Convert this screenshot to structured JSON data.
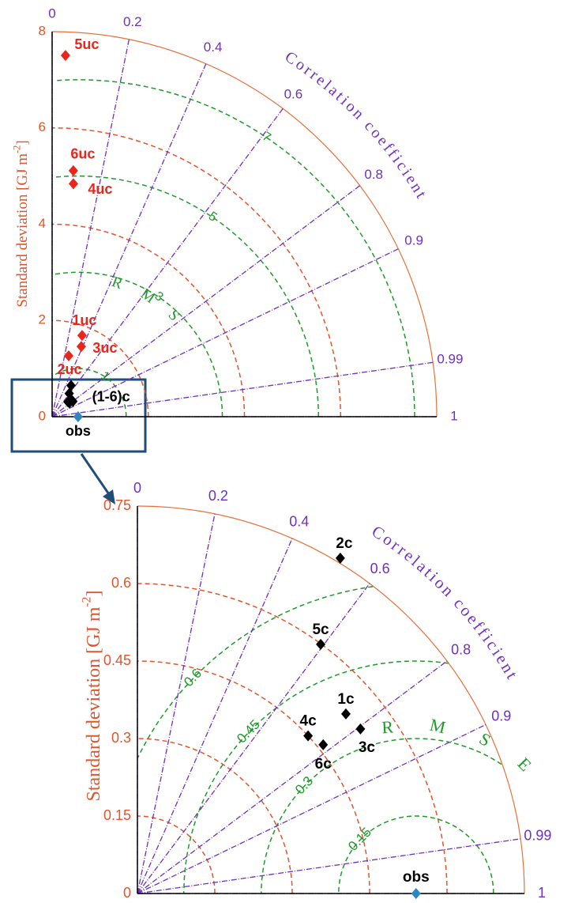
{
  "chart_data": [
    {
      "type": "taylor",
      "ylabel": [
        "Standard deviation [GJ m",
        "-2",
        "]"
      ],
      "corr_title": "Correlation coefficient",
      "rmse_title": "RMSE",
      "stdlim": [
        0,
        8
      ],
      "std_ticks": [
        0,
        2,
        4,
        6,
        8
      ],
      "corr_ticks": [
        0,
        0.2,
        0.4,
        0.6,
        0.8,
        0.9,
        0.99,
        1
      ],
      "rmse_ticks": [
        1,
        3,
        5,
        7
      ],
      "obs": {
        "label": "obs",
        "std": 0.54,
        "color": "#2e86c1"
      },
      "series": [
        {
          "color": "#e8261c",
          "labels": [
            "1uc",
            "2uc",
            "3uc",
            "4uc",
            "5uc",
            "6uc"
          ],
          "std": [
            1.8,
            1.31,
            1.58,
            4.86,
            7.51,
            5.13
          ],
          "corr": [
            0.346,
            0.263,
            0.384,
            0.091,
            0.037,
            0.086
          ]
        },
        {
          "color": "#000000",
          "label": "(1-6)c",
          "std": [
            0.533,
            0.759,
            0.537,
            0.45,
            0.599,
            0.461
          ],
          "corr": [
            0.758,
            0.518,
            0.805,
            0.735,
            0.593,
            0.781
          ]
        }
      ]
    },
    {
      "type": "taylor",
      "ylabel": [
        "Standard deviation [GJ m",
        "-2",
        "]"
      ],
      "corr_title": "Correlation coefficient",
      "rmse_title": "RMSE",
      "stdlim": [
        0,
        0.75
      ],
      "std_ticks": [
        0,
        0.15,
        0.3,
        0.45,
        0.6,
        0.75
      ],
      "corr_ticks": [
        0,
        0.2,
        0.4,
        0.6,
        0.8,
        0.9,
        0.99,
        1
      ],
      "rmse_ticks": [
        0.15,
        0.3,
        0.45,
        0.6
      ],
      "obs": {
        "label": "obs",
        "std": 0.54,
        "color": "#2e86c1"
      },
      "series": [
        {
          "color": "#000000",
          "labels": [
            "1c",
            "2c",
            "3c",
            "4c",
            "5c",
            "6c"
          ],
          "std": [
            0.533,
            0.759,
            0.537,
            0.45,
            0.599,
            0.461
          ],
          "corr": [
            0.758,
            0.518,
            0.805,
            0.735,
            0.593,
            0.781
          ]
        }
      ]
    }
  ]
}
